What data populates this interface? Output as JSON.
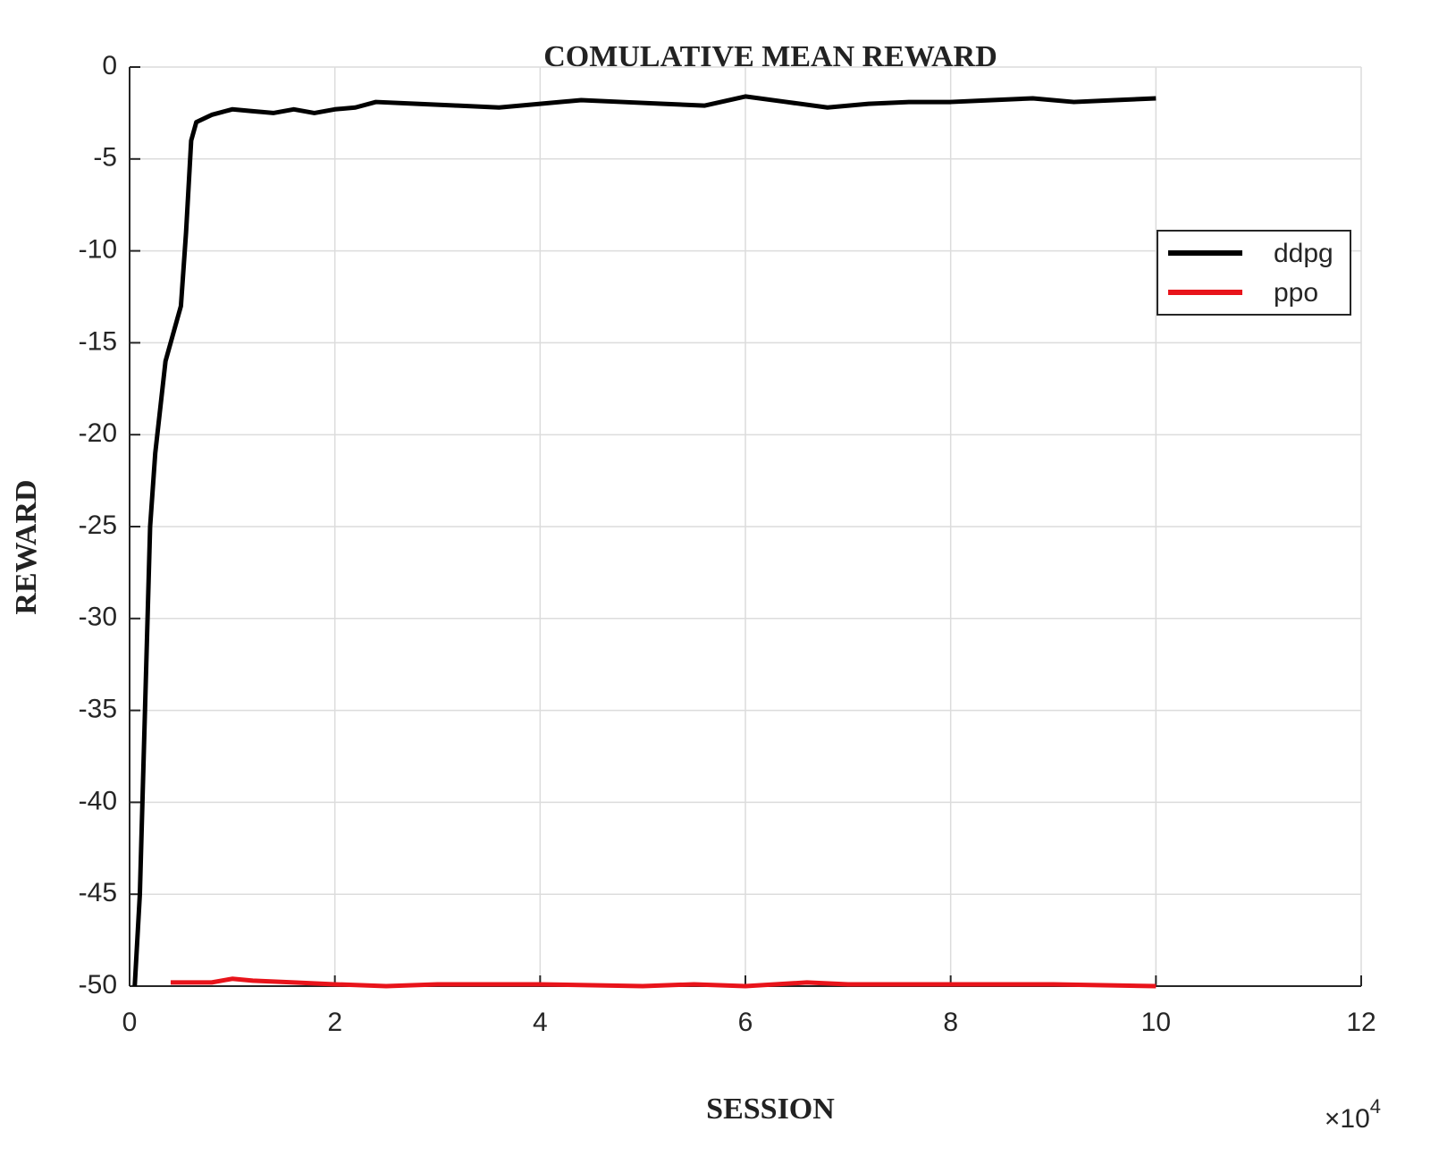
{
  "chart_data": {
    "type": "line",
    "title": "COMULATIVE MEAN REWARD",
    "x_label": "SESSION",
    "y_label": "REWARD",
    "x_multiplier_base": "×10",
    "x_multiplier_exponent": "4",
    "xlim": [
      0,
      12
    ],
    "ylim": [
      -50,
      0
    ],
    "xticks": [
      0,
      2,
      4,
      6,
      8,
      10,
      12
    ],
    "yticks": [
      0,
      -5,
      -10,
      -15,
      -20,
      -25,
      -30,
      -35,
      -40,
      -45,
      -50
    ],
    "grid": true,
    "legend_position": "upper right",
    "series": [
      {
        "name": "ddpg",
        "color": "#000000",
        "x": [
          0.05,
          0.1,
          0.15,
          0.2,
          0.25,
          0.3,
          0.35,
          0.45,
          0.5,
          0.55,
          0.6,
          0.65,
          0.8,
          1.0,
          1.2,
          1.4,
          1.6,
          1.8,
          2.0,
          2.2,
          2.4,
          2.8,
          3.2,
          3.6,
          4.0,
          4.4,
          4.8,
          5.2,
          5.6,
          6.0,
          6.4,
          6.8,
          7.2,
          7.6,
          8.0,
          8.4,
          8.8,
          9.2,
          9.6,
          10.0
        ],
        "values": [
          -50,
          -45,
          -35,
          -25,
          -21,
          -18.5,
          -16,
          -14,
          -13,
          -9,
          -4,
          -3,
          -2.6,
          -2.3,
          -2.4,
          -2.5,
          -2.3,
          -2.5,
          -2.3,
          -2.2,
          -1.9,
          -2.0,
          -2.1,
          -2.2,
          -2.0,
          -1.8,
          -1.9,
          -2.0,
          -2.1,
          -1.6,
          -1.9,
          -2.2,
          -2.0,
          -1.9,
          -1.9,
          -1.8,
          -1.7,
          -1.9,
          -1.8,
          -1.7
        ]
      },
      {
        "name": "ppo",
        "color": "#e8141b",
        "x": [
          0.4,
          0.8,
          1.0,
          1.2,
          1.6,
          2.0,
          2.5,
          3.0,
          4.0,
          5.0,
          5.5,
          6.0,
          6.6,
          7.0,
          8.0,
          9.0,
          10.0
        ],
        "values": [
          -49.8,
          -49.8,
          -49.6,
          -49.7,
          -49.8,
          -49.9,
          -50,
          -49.9,
          -49.9,
          -50,
          -49.9,
          -50,
          -49.8,
          -49.9,
          -49.9,
          -49.9,
          -50
        ]
      }
    ]
  }
}
